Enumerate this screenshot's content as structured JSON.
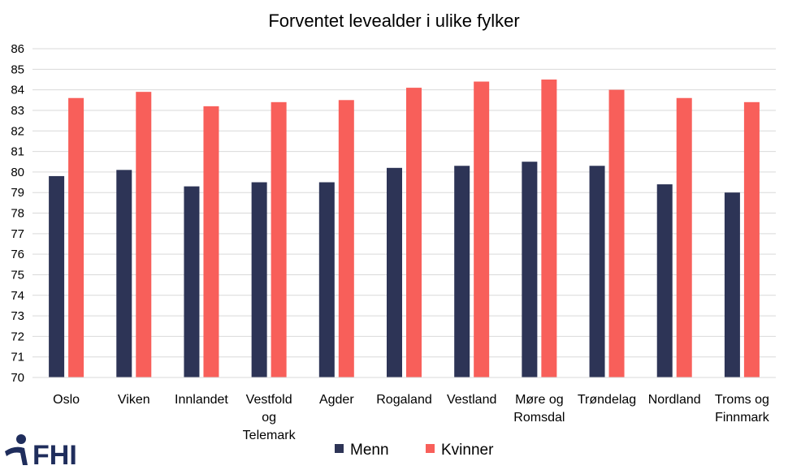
{
  "chart_data": {
    "type": "bar",
    "title": "Forventet levealder i ulike fylker",
    "xlabel": "",
    "ylabel": "",
    "ylim": [
      70,
      86
    ],
    "yticks": [
      70,
      71,
      72,
      73,
      74,
      75,
      76,
      77,
      78,
      79,
      80,
      81,
      82,
      83,
      84,
      85,
      86
    ],
    "grid": true,
    "legend_position": "bottom",
    "categories": [
      [
        "Oslo"
      ],
      [
        "Viken"
      ],
      [
        "Innlandet"
      ],
      [
        "Vestfold",
        "og",
        "Telemark"
      ],
      [
        "Agder"
      ],
      [
        "Rogaland"
      ],
      [
        "Vestland"
      ],
      [
        "Møre og",
        "Romsdal"
      ],
      [
        "Trøndelag"
      ],
      [
        "Nordland"
      ],
      [
        "Troms og",
        "Finnmark"
      ]
    ],
    "series": [
      {
        "name": "Menn",
        "color": "#2d3456",
        "values": [
          79.8,
          80.1,
          79.3,
          79.5,
          79.5,
          80.2,
          80.3,
          80.5,
          80.3,
          79.4,
          79.0
        ]
      },
      {
        "name": "Kvinner",
        "color": "#f85f5a",
        "values": [
          83.6,
          83.9,
          83.2,
          83.4,
          83.5,
          84.1,
          84.4,
          84.5,
          84.0,
          83.6,
          83.4
        ]
      }
    ]
  },
  "logo": {
    "text": "FHI",
    "icon": "fhi-logo-icon",
    "color": "#1f2d5c"
  }
}
